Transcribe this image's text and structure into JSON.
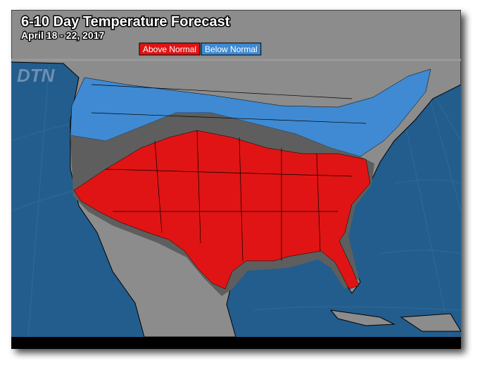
{
  "header": {
    "title": "6-10 Day Temperature Forecast",
    "subtitle": "April 18 - 22, 2017"
  },
  "legend": {
    "items": [
      {
        "label": "Above Normal",
        "color": "#e01414"
      },
      {
        "label": "Below Normal",
        "color": "#3f8ad2"
      }
    ]
  },
  "logo": "DTN"
}
